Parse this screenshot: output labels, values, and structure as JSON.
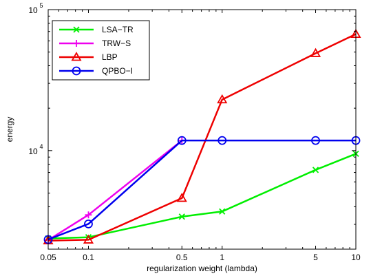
{
  "chart_data": {
    "type": "line",
    "xlabel": "regularization weight (lambda)",
    "ylabel": "energy",
    "x_scale": "log",
    "y_scale": "log",
    "xlim": [
      0.05,
      10
    ],
    "ylim": [
      2000,
      100000
    ],
    "x_ticks": [
      {
        "value": 0.05,
        "label": "0.05"
      },
      {
        "value": 0.1,
        "label": "0.1"
      },
      {
        "value": 0.5,
        "label": "0.5"
      },
      {
        "value": 1,
        "label": "1"
      },
      {
        "value": 5,
        "label": "5"
      },
      {
        "value": 10,
        "label": "10"
      }
    ],
    "y_ticks": [
      {
        "value": 10000,
        "base": "10",
        "exp": "4"
      },
      {
        "value": 100000,
        "base": "10",
        "exp": "5"
      }
    ],
    "grid": false,
    "legend_position": "top-left",
    "series": [
      {
        "name": "LSA−TR",
        "color": "#00ee00",
        "marker": "x",
        "points": [
          [
            0.05,
            2380
          ],
          [
            0.1,
            2430
          ],
          [
            0.5,
            3400
          ],
          [
            1,
            3700
          ],
          [
            5,
            7300
          ],
          [
            10,
            9500
          ]
        ]
      },
      {
        "name": "TRW−S",
        "color": "#ee00ee",
        "marker": "plus",
        "points": [
          [
            0.05,
            2320
          ],
          [
            0.1,
            3500
          ],
          [
            0.5,
            11800
          ]
        ]
      },
      {
        "name": "LBP",
        "color": "#ee0000",
        "marker": "triangle",
        "points": [
          [
            0.05,
            2300
          ],
          [
            0.1,
            2330
          ],
          [
            0.5,
            4600
          ],
          [
            1,
            23000
          ],
          [
            5,
            49000
          ],
          [
            10,
            67000
          ]
        ]
      },
      {
        "name": "QPBO−I",
        "color": "#0000ee",
        "marker": "circle",
        "points": [
          [
            0.05,
            2340
          ],
          [
            0.1,
            3020
          ],
          [
            0.5,
            11800
          ],
          [
            1,
            11800
          ],
          [
            5,
            11800
          ],
          [
            10,
            11800
          ]
        ]
      }
    ]
  }
}
